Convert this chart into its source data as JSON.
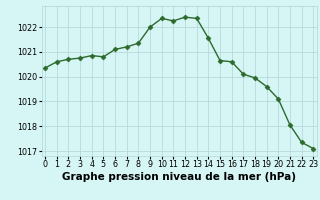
{
  "x": [
    0,
    1,
    2,
    3,
    4,
    5,
    6,
    7,
    8,
    9,
    10,
    11,
    12,
    13,
    14,
    15,
    16,
    17,
    18,
    19,
    20,
    21,
    22,
    23
  ],
  "y": [
    1020.35,
    1020.6,
    1020.7,
    1020.75,
    1020.85,
    1020.8,
    1021.1,
    1021.2,
    1021.35,
    1022.0,
    1022.35,
    1022.25,
    1022.4,
    1022.35,
    1021.55,
    1020.65,
    1020.6,
    1020.1,
    1019.95,
    1019.6,
    1019.1,
    1018.05,
    1017.35,
    1017.1
  ],
  "line_color": "#2d6a2d",
  "marker": "D",
  "marker_size": 2.5,
  "bg_color": "#d6f5f5",
  "grid_color": "#b8dada",
  "xlabel": "Graphe pression niveau de la mer (hPa)",
  "xlabel_fontsize": 7.5,
  "ylim": [
    1016.8,
    1022.85
  ],
  "yticks": [
    1017,
    1018,
    1019,
    1020,
    1021,
    1022
  ],
  "xticks": [
    0,
    1,
    2,
    3,
    4,
    5,
    6,
    7,
    8,
    9,
    10,
    11,
    12,
    13,
    14,
    15,
    16,
    17,
    18,
    19,
    20,
    21,
    22,
    23
  ],
  "tick_fontsize": 5.8,
  "line_width": 1.0
}
